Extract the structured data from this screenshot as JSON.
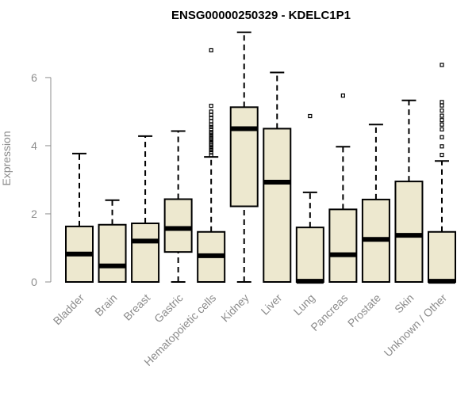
{
  "chart_data": {
    "type": "boxplot",
    "title": "ENSG00000250329 - KDELC1P1",
    "ylabel": "Expression",
    "xlabel": "",
    "ylim": [
      0,
      7.3
    ],
    "yticks": [
      0,
      2,
      4,
      6
    ],
    "grid": false,
    "box_fill": "#ede8cf",
    "box_stroke": "#000000",
    "axis_color": "#8c8c8c",
    "categories": [
      "Bladder",
      "Brain",
      "Breast",
      "Gastric",
      "Hematopoietic cells",
      "Kidney",
      "Liver",
      "Lung",
      "Pancreas",
      "Prostate",
      "Skin",
      "Unknown / Other"
    ],
    "boxes": [
      {
        "min": 0,
        "q1": 0,
        "median": 0.82,
        "q3": 1.63,
        "max": 3.77,
        "outliers": []
      },
      {
        "min": 0,
        "q1": 0,
        "median": 0.47,
        "q3": 1.68,
        "max": 2.4,
        "outliers": []
      },
      {
        "min": 0,
        "q1": 0,
        "median": 1.2,
        "q3": 1.72,
        "max": 4.28,
        "outliers": []
      },
      {
        "min": 0,
        "q1": 0.88,
        "median": 1.57,
        "q3": 2.43,
        "max": 4.43,
        "outliers": []
      },
      {
        "min": 0,
        "q1": 0,
        "median": 0.77,
        "q3": 1.47,
        "max": 3.67,
        "outliers": [
          3.72,
          3.8,
          3.87,
          3.93,
          4.0,
          4.05,
          4.1,
          4.17,
          4.22,
          4.28,
          4.35,
          4.4,
          4.48,
          4.55,
          4.62,
          4.72,
          4.82,
          4.9,
          5.0,
          5.17,
          6.8
        ]
      },
      {
        "min": 0,
        "q1": 2.22,
        "median": 4.5,
        "q3": 5.13,
        "max": 7.33,
        "outliers": []
      },
      {
        "min": 0,
        "q1": 0,
        "median": 2.93,
        "q3": 4.5,
        "max": 6.15,
        "outliers": []
      },
      {
        "min": 0,
        "q1": 0,
        "median": 0.02,
        "q3": 1.6,
        "max": 2.63,
        "outliers": [
          4.87
        ]
      },
      {
        "min": 0,
        "q1": 0,
        "median": 0.8,
        "q3": 2.13,
        "max": 3.97,
        "outliers": [
          5.47
        ]
      },
      {
        "min": 0,
        "q1": 0,
        "median": 1.25,
        "q3": 2.42,
        "max": 4.62,
        "outliers": []
      },
      {
        "min": 0,
        "q1": 0,
        "median": 1.37,
        "q3": 2.95,
        "max": 5.33,
        "outliers": []
      },
      {
        "min": 0,
        "q1": 0,
        "median": 0.02,
        "q3": 1.47,
        "max": 3.55,
        "outliers": [
          3.73,
          3.98,
          4.25,
          4.48,
          4.62,
          4.75,
          4.88,
          5.03,
          5.18,
          5.28,
          6.37
        ]
      }
    ]
  }
}
